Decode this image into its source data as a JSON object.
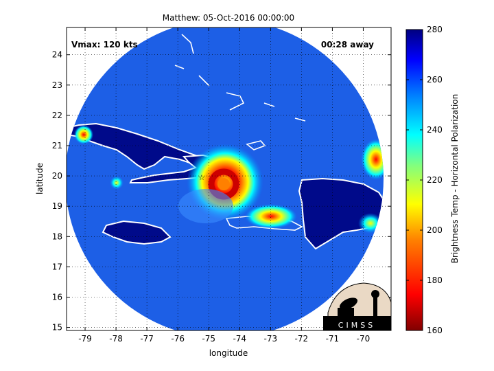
{
  "chart_data": {
    "type": "heatmap",
    "title": "Matthew: 05-Oct-2016 00:00:00",
    "xlabel": "longitude",
    "ylabel": "latitude",
    "xlim": [
      -79.6,
      -69.1
    ],
    "ylim": [
      14.9,
      24.9
    ],
    "x_ticks": [
      -79,
      -78,
      -77,
      -76,
      -75,
      -74,
      -73,
      -72,
      -71,
      -70
    ],
    "y_ticks": [
      15,
      16,
      17,
      18,
      19,
      20,
      21,
      22,
      23,
      24
    ],
    "annotation_left": "Vmax: 120 kts",
    "annotation_right": "00:28 away",
    "colorbar": {
      "label": "Brightness Temp - Horizontal Polarization",
      "min": 160,
      "max": 280,
      "ticks": [
        160,
        180,
        200,
        220,
        240,
        260,
        280
      ],
      "colors": [
        "#800000",
        "#ff0000",
        "#ff8000",
        "#ffff00",
        "#80ff80",
        "#00ffff",
        "#0080ff",
        "#0000ff",
        "#000080"
      ]
    },
    "background_value": 262,
    "storm_center": {
      "lon": -74.2,
      "lat": 19.8,
      "eye_value": 180,
      "eyewall_value": 172
    },
    "warm_spots": [
      {
        "lon": -78.9,
        "lat": 21.3,
        "value": 215
      },
      {
        "lon": -77.9,
        "lat": 19.7,
        "value": 228
      },
      {
        "lon": -69.3,
        "lat": 20.5,
        "value": 190
      },
      {
        "lon": -74.4,
        "lat": 19.6,
        "value": 188
      }
    ]
  },
  "logo": {
    "text": "CIMSS"
  }
}
